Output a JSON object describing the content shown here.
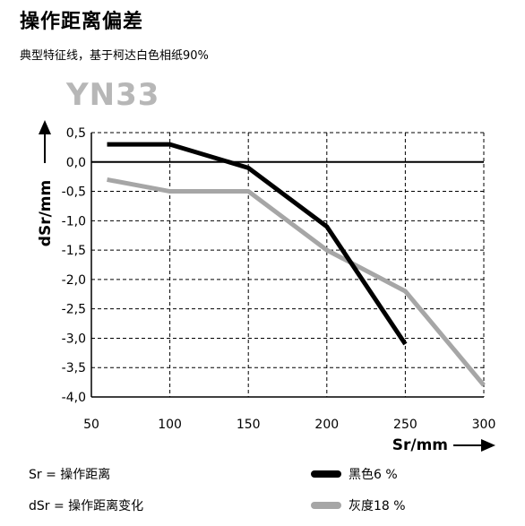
{
  "header": {
    "title": "操作距离偏差",
    "subtitle": "典型特征线，基于柯达白色相纸90%",
    "model": "YN33"
  },
  "notes": {
    "sr": "Sr = 操作距离",
    "dsr": "dSr = 操作距离变化"
  },
  "colors": {
    "black_series": "#000000",
    "gray_series": "#a6a6a6"
  },
  "chart_data": {
    "type": "line",
    "xlabel": "Sr/mm",
    "ylabel": "dSr/mm",
    "xlim": [
      50,
      300
    ],
    "ylim": [
      -4.0,
      0.5
    ],
    "x_ticks": [
      50,
      100,
      150,
      200,
      250,
      300
    ],
    "x_tick_labels": [
      "50",
      "100",
      "150",
      "200",
      "250",
      "300"
    ],
    "y_ticks": [
      0.5,
      0.0,
      -0.5,
      -1.0,
      -1.5,
      -2.0,
      -2.5,
      -3.0,
      -3.5,
      -4.0
    ],
    "y_tick_labels": [
      "0,5",
      "0,0",
      "-0,5",
      "-1,0",
      "-1,5",
      "-2,0",
      "-2,5",
      "-3,0",
      "-3,5",
      "-4,0"
    ],
    "grid": true,
    "legend_position": "bottom-right",
    "series": [
      {
        "name": "黑色6 %",
        "color": "#000000",
        "points": [
          [
            60,
            0.3
          ],
          [
            100,
            0.3
          ],
          [
            150,
            -0.1
          ],
          [
            200,
            -1.1
          ],
          [
            250,
            -3.1
          ]
        ]
      },
      {
        "name": "灰度18 %",
        "color": "#a6a6a6",
        "points": [
          [
            60,
            -0.3
          ],
          [
            100,
            -0.5
          ],
          [
            150,
            -0.5
          ],
          [
            200,
            -1.5
          ],
          [
            250,
            -2.2
          ],
          [
            300,
            -3.8
          ]
        ]
      }
    ]
  }
}
